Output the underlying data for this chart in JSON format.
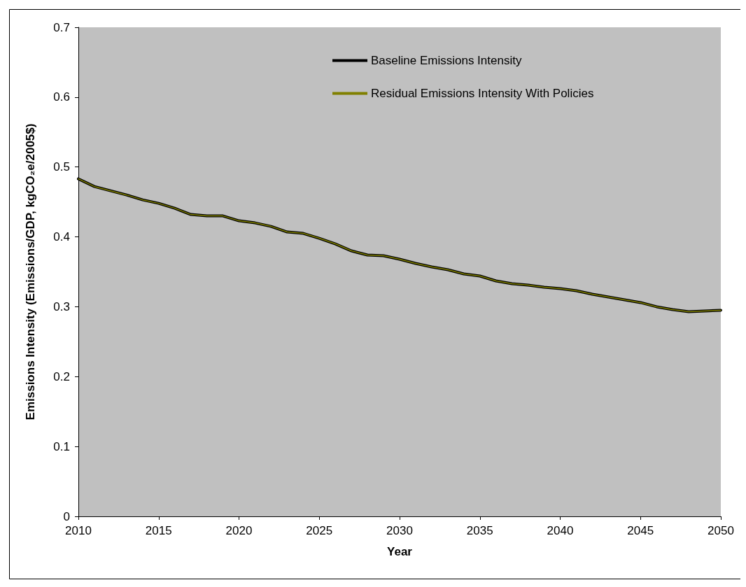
{
  "chart_data": {
    "type": "line",
    "xlabel": "Year",
    "ylabel": "Emissions Intensity (Emissions/GDP, kgCO₂e/2005$)",
    "x": [
      2010,
      2011,
      2012,
      2013,
      2014,
      2015,
      2016,
      2017,
      2018,
      2019,
      2020,
      2021,
      2022,
      2023,
      2024,
      2025,
      2026,
      2027,
      2028,
      2029,
      2030,
      2031,
      2032,
      2033,
      2034,
      2035,
      2036,
      2037,
      2038,
      2039,
      2040,
      2041,
      2042,
      2043,
      2044,
      2045,
      2046,
      2047,
      2048,
      2049,
      2050
    ],
    "series": [
      {
        "name": "Baseline Emissions Intensity",
        "color": "#000000",
        "values": [
          0.483,
          0.472,
          0.466,
          0.46,
          0.453,
          0.448,
          0.441,
          0.432,
          0.43,
          0.43,
          0.423,
          0.42,
          0.415,
          0.407,
          0.405,
          0.398,
          0.39,
          0.38,
          0.374,
          0.373,
          0.368,
          0.362,
          0.357,
          0.353,
          0.347,
          0.344,
          0.337,
          0.333,
          0.331,
          0.328,
          0.326,
          0.323,
          0.318,
          0.314,
          0.31,
          0.306,
          0.3,
          0.296,
          0.293,
          0.294,
          0.295
        ]
      },
      {
        "name": "Residual Emissions Intensity With Policies",
        "color": "#808000",
        "values": [
          0.483,
          0.472,
          0.466,
          0.46,
          0.453,
          0.448,
          0.441,
          0.432,
          0.43,
          0.43,
          0.423,
          0.42,
          0.415,
          0.407,
          0.405,
          0.398,
          0.39,
          0.38,
          0.374,
          0.373,
          0.368,
          0.362,
          0.357,
          0.353,
          0.347,
          0.344,
          0.337,
          0.333,
          0.331,
          0.328,
          0.326,
          0.323,
          0.318,
          0.314,
          0.31,
          0.306,
          0.3,
          0.296,
          0.293,
          0.294,
          0.295
        ]
      }
    ],
    "xlim": [
      2010,
      2050
    ],
    "xticks": [
      2010,
      2015,
      2020,
      2025,
      2030,
      2035,
      2040,
      2045,
      2050
    ],
    "ylim": [
      0,
      0.7
    ],
    "yticks": [
      0,
      0.1,
      0.2,
      0.3,
      0.4,
      0.5,
      0.6,
      0.7
    ],
    "grid": false,
    "legend": "top",
    "marker": "none",
    "line_style": "solid"
  }
}
